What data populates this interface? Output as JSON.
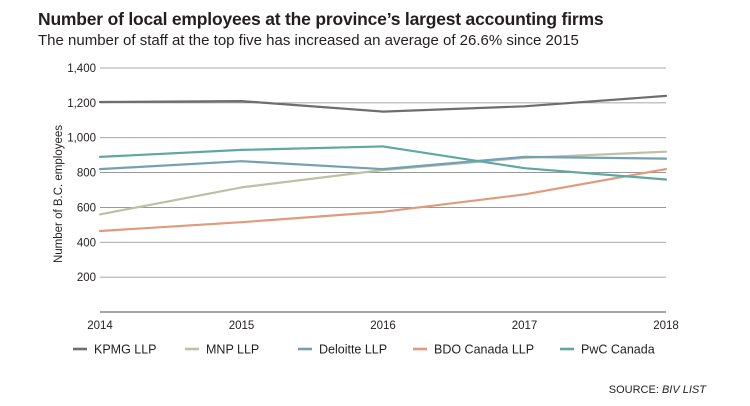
{
  "chart_data": {
    "type": "line",
    "title": "Number of local employees at the province’s largest accounting firms",
    "subtitle": "The number of staff at the top five has increased an average of 26.6% since 2015",
    "ylabel": "Number of B.C. employees",
    "xlabel": "",
    "x": [
      2014,
      2015,
      2016,
      2017,
      2018
    ],
    "x_tick_labels": [
      "2014",
      "2015",
      "2016",
      "2017",
      "2018"
    ],
    "y_ticks": [
      200,
      400,
      600,
      800,
      1000,
      1200,
      1400
    ],
    "y_tick_labels": [
      "200",
      "400",
      "600",
      "800",
      "1,000",
      "1,200",
      "1,400"
    ],
    "ylim": [
      0,
      1400
    ],
    "grid": true,
    "legend_position": "bottom",
    "series": [
      {
        "name": "KPMG LLP",
        "color": "#6d6e70",
        "values": [
          1205,
          1210,
          1150,
          1180,
          1240
        ]
      },
      {
        "name": "MNP LLP",
        "color": "#bcc0a6",
        "values": [
          560,
          715,
          815,
          885,
          920
        ]
      },
      {
        "name": "Deloitte LLP",
        "color": "#72a1b2",
        "values": [
          820,
          865,
          820,
          890,
          880
        ]
      },
      {
        "name": "BDO Canada LLP",
        "color": "#e29a7c",
        "values": [
          465,
          515,
          575,
          675,
          820
        ]
      },
      {
        "name": "PwC Canada",
        "color": "#5fa7a3",
        "values": [
          890,
          930,
          950,
          825,
          760
        ]
      }
    ],
    "source_prefix": "SOURCE: ",
    "source_name": "BIV LIST"
  }
}
